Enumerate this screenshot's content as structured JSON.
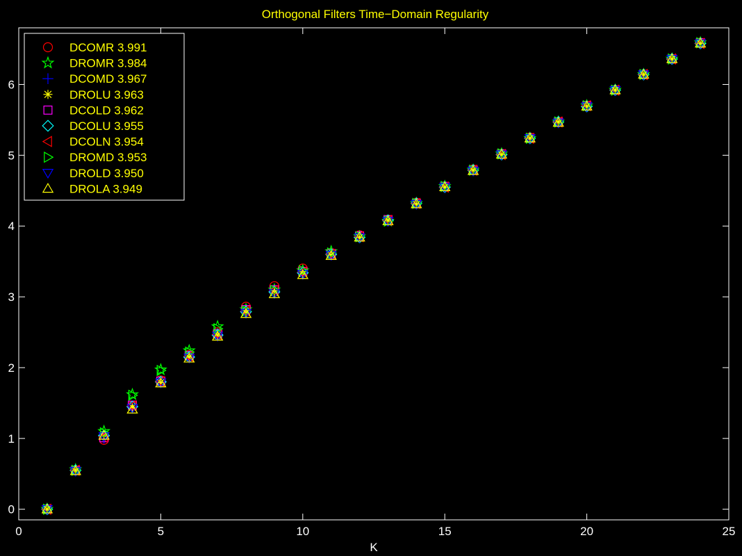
{
  "chart_data": {
    "type": "scatter",
    "title": "Orthogonal Filters Time−Domain Regularity",
    "xlabel": "K",
    "ylabel": "",
    "xlim": [
      0,
      25
    ],
    "ylim": [
      -0.15,
      6.8
    ],
    "x_ticks": [
      0,
      5,
      10,
      15,
      20,
      25
    ],
    "y_ticks": [
      0,
      1,
      2,
      3,
      4,
      5,
      6
    ],
    "grid": false,
    "legend_position": "top-left",
    "colors": {
      "background": "#000000",
      "axes": "#ffffff",
      "text": "#ffff00"
    },
    "x": [
      1,
      2,
      3,
      4,
      5,
      6,
      7,
      8,
      9,
      10,
      11,
      12,
      13,
      14,
      15,
      16,
      17,
      18,
      19,
      20,
      21,
      22,
      23,
      24
    ],
    "series": [
      {
        "name": "DCOMR 3.991",
        "marker": "circle",
        "color": "#ff0000",
        "values": [
          0,
          0.55,
          0.98,
          1.46,
          1.82,
          2.18,
          2.5,
          2.86,
          3.15,
          3.4,
          3.62,
          3.87,
          4.09,
          4.33,
          4.56,
          4.8,
          5.02,
          5.25,
          5.47,
          5.7,
          5.92,
          6.14,
          6.36,
          6.59
        ]
      },
      {
        "name": "DROMR 3.984",
        "marker": "star",
        "color": "#00ff00",
        "values": [
          0,
          0.56,
          1.1,
          1.62,
          1.97,
          2.24,
          2.58,
          2.82,
          3.1,
          3.37,
          3.64,
          3.85,
          4.07,
          4.32,
          4.56,
          4.79,
          5.02,
          5.24,
          5.47,
          5.7,
          5.92,
          6.14,
          6.36,
          6.59
        ]
      },
      {
        "name": "DCOMD 3.967",
        "marker": "plus",
        "color": "#0000ff",
        "values": [
          0,
          0.55,
          1.0,
          1.45,
          1.8,
          2.16,
          2.47,
          2.8,
          3.08,
          3.34,
          3.6,
          3.84,
          4.08,
          4.32,
          4.55,
          4.79,
          5.01,
          5.24,
          5.47,
          5.69,
          5.92,
          6.14,
          6.36,
          6.58
        ]
      },
      {
        "name": "DROLU 3.963",
        "marker": "asterisk",
        "color": "#ffff00",
        "values": [
          0,
          0.55,
          1.05,
          1.44,
          1.79,
          2.15,
          2.46,
          2.78,
          3.06,
          3.33,
          3.59,
          3.84,
          4.08,
          4.31,
          4.55,
          4.79,
          5.01,
          5.24,
          5.47,
          5.69,
          5.92,
          6.14,
          6.36,
          6.58
        ]
      },
      {
        "name": "DCOLD 3.962",
        "marker": "square",
        "color": "#ff00ff",
        "values": [
          0,
          0.55,
          1.01,
          1.47,
          1.81,
          2.17,
          2.48,
          2.82,
          3.1,
          3.36,
          3.61,
          3.86,
          4.09,
          4.32,
          4.56,
          4.79,
          5.02,
          5.24,
          5.47,
          5.7,
          5.92,
          6.14,
          6.36,
          6.59
        ]
      },
      {
        "name": "DCOLU 3.955",
        "marker": "diamond",
        "color": "#00ffff",
        "values": [
          0,
          0.55,
          1.04,
          1.45,
          1.8,
          2.15,
          2.46,
          2.79,
          3.07,
          3.34,
          3.6,
          3.84,
          4.08,
          4.32,
          4.55,
          4.79,
          5.01,
          5.24,
          5.47,
          5.69,
          5.92,
          6.14,
          6.36,
          6.58
        ]
      },
      {
        "name": "DCOLN 3.954",
        "marker": "triangle-left",
        "color": "#ff0000",
        "values": [
          0,
          0.55,
          1.02,
          1.46,
          1.8,
          2.16,
          2.47,
          2.8,
          3.09,
          3.35,
          3.6,
          3.85,
          4.08,
          4.32,
          4.55,
          4.79,
          5.01,
          5.24,
          5.47,
          5.7,
          5.92,
          6.14,
          6.36,
          6.58
        ]
      },
      {
        "name": "DROMD 3.953",
        "marker": "triangle-right",
        "color": "#00ff00",
        "values": [
          0,
          0.55,
          1.08,
          1.61,
          1.96,
          2.22,
          2.55,
          2.8,
          3.09,
          3.37,
          3.62,
          3.85,
          4.07,
          4.32,
          4.56,
          4.79,
          5.02,
          5.24,
          5.47,
          5.7,
          5.92,
          6.14,
          6.36,
          6.59
        ]
      },
      {
        "name": "DROLD 3.950",
        "marker": "triangle-down",
        "color": "#0000ff",
        "values": [
          0,
          0.54,
          1.03,
          1.43,
          1.79,
          2.14,
          2.45,
          2.77,
          3.05,
          3.32,
          3.59,
          3.84,
          4.07,
          4.31,
          4.55,
          4.78,
          5.01,
          5.24,
          5.46,
          5.69,
          5.92,
          6.14,
          6.36,
          6.58
        ]
      },
      {
        "name": "DROLA 3.949",
        "marker": "triangle-up",
        "color": "#ffff00",
        "values": [
          0,
          0.54,
          1.04,
          1.41,
          1.78,
          2.13,
          2.44,
          2.76,
          3.04,
          3.31,
          3.58,
          3.84,
          4.07,
          4.31,
          4.55,
          4.78,
          5.01,
          5.24,
          5.46,
          5.69,
          5.92,
          6.14,
          6.36,
          6.58
        ]
      }
    ]
  }
}
